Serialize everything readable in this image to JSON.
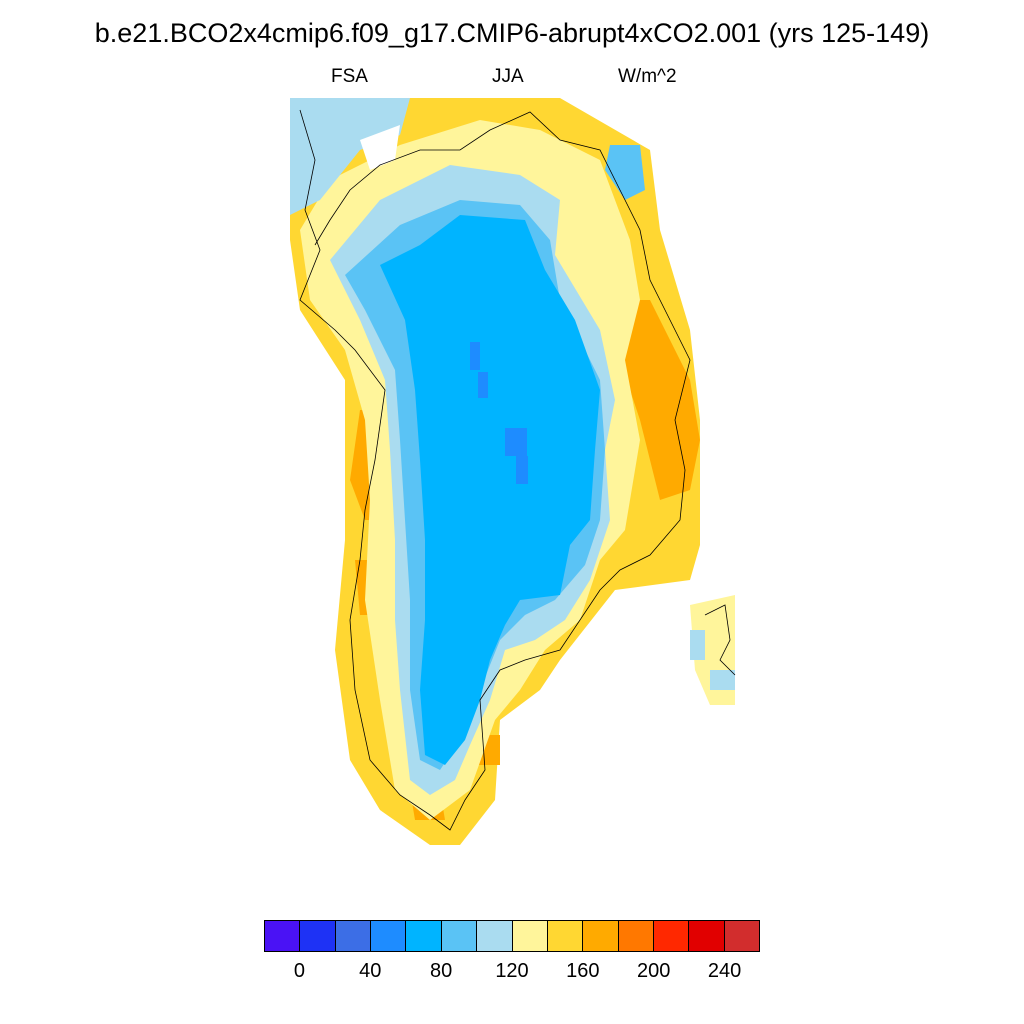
{
  "title": "b.e21.BCO2x4cmip6.f09_g17.CMIP6-abrupt4xCO2.001 (yrs 125-149)",
  "subtitle": {
    "left": "FSA",
    "center": "JJA",
    "right": "W/m^2"
  },
  "colorbar": {
    "colors": [
      "#4a12f5",
      "#1e32f5",
      "#3c6ee6",
      "#1e8cff",
      "#00b4ff",
      "#5ac3f5",
      "#aadcf0",
      "#fff59b",
      "#ffd732",
      "#ffaa00",
      "#ff7800",
      "#ff2800",
      "#e10000",
      "#d22d2d"
    ],
    "labels": [
      "0",
      "40",
      "80",
      "120",
      "160",
      "200",
      "240"
    ]
  },
  "chart_data": {
    "type": "heatmap",
    "variable": "FSA",
    "season": "JJA",
    "units": "W/m^2",
    "levels": [
      0,
      20,
      40,
      60,
      80,
      100,
      120,
      140,
      160,
      180,
      200,
      220,
      240
    ],
    "region": "Greenland",
    "fields": {
      "interior_ice_sheet": 90,
      "ice_sheet_margin": 110,
      "ice_free_coast": 160,
      "warmest_coastal_cells": 190,
      "lowest_interior_cells": 70
    }
  }
}
